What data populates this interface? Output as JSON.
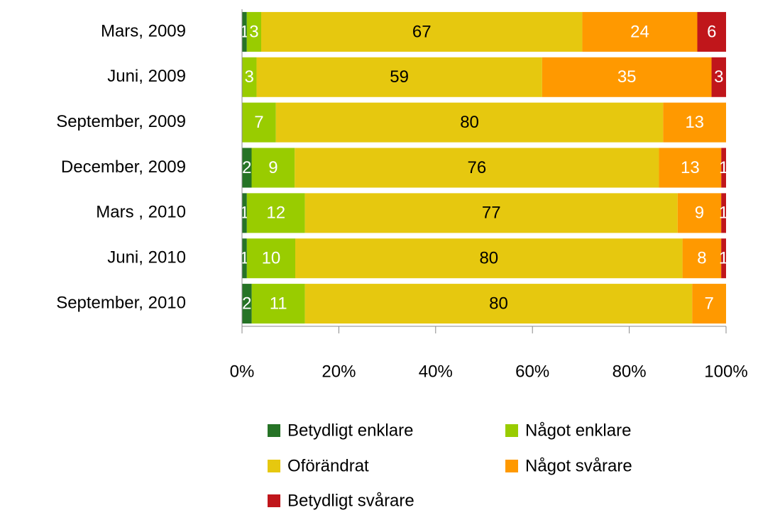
{
  "chart_data": {
    "type": "bar",
    "orientation": "horizontal",
    "stacked": "percent",
    "categories": [
      "Mars, 2009",
      "Juni, 2009",
      "September, 2009",
      "December, 2009",
      "Mars , 2010",
      "Juni, 2010",
      "September, 2010"
    ],
    "series": [
      {
        "name": "Betydligt enklare",
        "color": "#267326",
        "values": [
          1,
          null,
          null,
          2,
          1,
          1,
          2
        ]
      },
      {
        "name": "Något enklare",
        "color": "#99cc00",
        "values": [
          3,
          3,
          7,
          9,
          12,
          10,
          11
        ]
      },
      {
        "name": "Oförändrat",
        "color": "#e6c80f",
        "values": [
          67,
          59,
          80,
          76,
          77,
          80,
          80
        ]
      },
      {
        "name": "Något svårare",
        "color": "#ff9900",
        "values": [
          24,
          35,
          13,
          13,
          9,
          8,
          7
        ]
      },
      {
        "name": "Betydligt svårare",
        "color": "#c0161b",
        "values": [
          6,
          3,
          null,
          1,
          1,
          1,
          null
        ]
      }
    ],
    "xlim": [
      0,
      100
    ],
    "xticks": [
      {
        "value": 0,
        "label": "0%"
      },
      {
        "value": 20,
        "label": "20%"
      },
      {
        "value": 40,
        "label": "40%"
      },
      {
        "value": 60,
        "label": "60%"
      },
      {
        "value": 80,
        "label": "80%"
      },
      {
        "value": 100,
        "label": "100%"
      }
    ],
    "legend": "bottom"
  }
}
